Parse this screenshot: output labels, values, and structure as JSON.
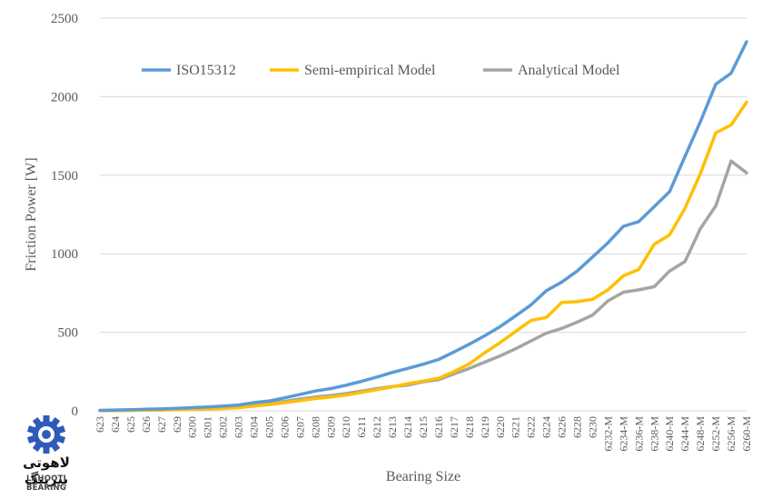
{
  "chart_data": {
    "type": "line",
    "xlabel": "Bearing Size",
    "ylabel": "Friction Power [W]",
    "ylim": [
      0,
      2500
    ],
    "yticks": [
      0,
      500,
      1000,
      1500,
      2000,
      2500
    ],
    "grid": true,
    "legend": "top",
    "categories": [
      "623",
      "624",
      "625",
      "626",
      "627",
      "629",
      "6200",
      "6201",
      "6202",
      "6203",
      "6204",
      "6205",
      "6206",
      "6207",
      "6208",
      "6209",
      "6210",
      "6211",
      "6212",
      "6213",
      "6214",
      "6215",
      "6216",
      "6217",
      "6218",
      "6219",
      "6220",
      "6221",
      "6222",
      "6224",
      "6226",
      "6228",
      "6230",
      "6232-M",
      "6234-M",
      "6236-M",
      "6238-M",
      "6240-M",
      "6244-M",
      "6248-M",
      "6252-M",
      "6256-M",
      "6260-M"
    ],
    "series": [
      {
        "name": "ISO15312",
        "color": "#5B9BD5",
        "values": [
          3,
          5,
          7,
          10,
          12,
          16,
          20,
          25,
          30,
          37,
          52,
          63,
          83,
          105,
          126,
          142,
          163,
          188,
          215,
          245,
          270,
          297,
          327,
          375,
          425,
          478,
          537,
          605,
          675,
          765,
          820,
          890,
          980,
          1070,
          1175,
          1205,
          1300,
          1395,
          1620,
          1840,
          2080,
          2150,
          2350
        ]
      },
      {
        "name": "Semi-empirical Model",
        "color": "#FFC000",
        "values": [
          1,
          2,
          3,
          4,
          5,
          7,
          9,
          11,
          15,
          20,
          30,
          40,
          52,
          65,
          78,
          88,
          100,
          118,
          135,
          153,
          173,
          190,
          207,
          250,
          300,
          370,
          435,
          505,
          575,
          595,
          690,
          695,
          710,
          770,
          860,
          900,
          1060,
          1120,
          1290,
          1510,
          1770,
          1820,
          1965
        ]
      },
      {
        "name": "Analytical Model",
        "color": "#A5A5A5",
        "values": [
          2,
          4,
          5,
          6,
          8,
          10,
          12,
          15,
          20,
          28,
          38,
          50,
          60,
          75,
          88,
          98,
          110,
          125,
          142,
          155,
          163,
          185,
          198,
          235,
          270,
          310,
          350,
          395,
          445,
          495,
          525,
          565,
          610,
          700,
          755,
          770,
          790,
          890,
          950,
          1160,
          1305,
          1590,
          1515
        ]
      }
    ]
  },
  "logo": {
    "text_fa": "لاهوتی بیرینگ",
    "text_en": "LAHOOTI BEARING",
    "color": "#2E5BBA"
  }
}
